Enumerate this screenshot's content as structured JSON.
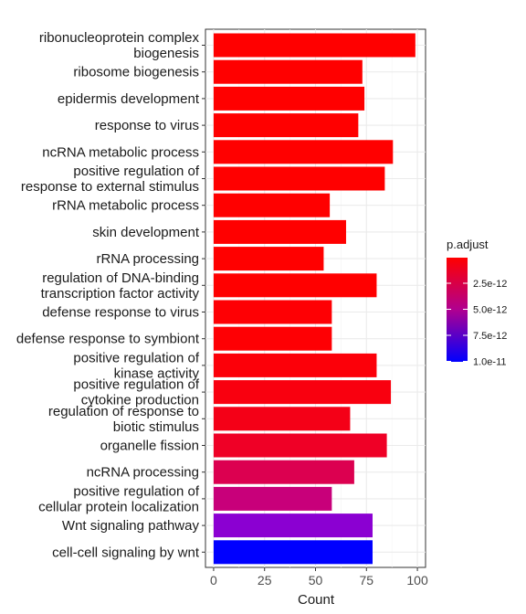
{
  "chart_data": {
    "type": "bar",
    "orientation": "horizontal",
    "title": "",
    "xlabel": "Count",
    "ylabel": "",
    "xlim": [
      -4,
      104
    ],
    "xticks": [
      0,
      25,
      50,
      75,
      100
    ],
    "grid": true,
    "legend_position": "right",
    "categories": [
      "ribonucleoprotein complex\nbiogenesis",
      "ribosome biogenesis",
      "epidermis development",
      "response to virus",
      "ncRNA metabolic process",
      "positive regulation of\nresponse to external stimulus",
      "rRNA metabolic process",
      "skin development",
      "rRNA processing",
      "regulation of DNA-binding\ntranscription factor activity",
      "defense response to virus",
      "defense response to symbiont",
      "positive regulation of\nkinase activity",
      "positive regulation of\ncytokine production",
      "regulation of response to\nbiotic stimulus",
      "organelle fission",
      "ncRNA processing",
      "positive regulation of\ncellular protein localization",
      "Wnt signaling pathway",
      "cell-cell signaling by wnt"
    ],
    "values": [
      99,
      73,
      74,
      71,
      88,
      84,
      57,
      65,
      54,
      80,
      58,
      58,
      80,
      87,
      67,
      85,
      69,
      58,
      78,
      78
    ],
    "colors": [
      "#ff0000",
      "#ff0000",
      "#ff0000",
      "#ff0000",
      "#ff0000",
      "#ff0000",
      "#ff0000",
      "#ff0000",
      "#ff0000",
      "#ff0000",
      "#fe0004",
      "#fe0004",
      "#fc0009",
      "#f9000f",
      "#f40017",
      "#ef0026",
      "#dc0050",
      "#c8007a",
      "#8b00d2",
      "#0000ff"
    ],
    "color_legend": {
      "title": "p.adjust",
      "ticks": [
        "2.5e-12",
        "5.0e-12",
        "7.5e-12",
        "1.0e-11"
      ],
      "low_color": "#ff0000",
      "high_color": "#0000ff"
    }
  }
}
